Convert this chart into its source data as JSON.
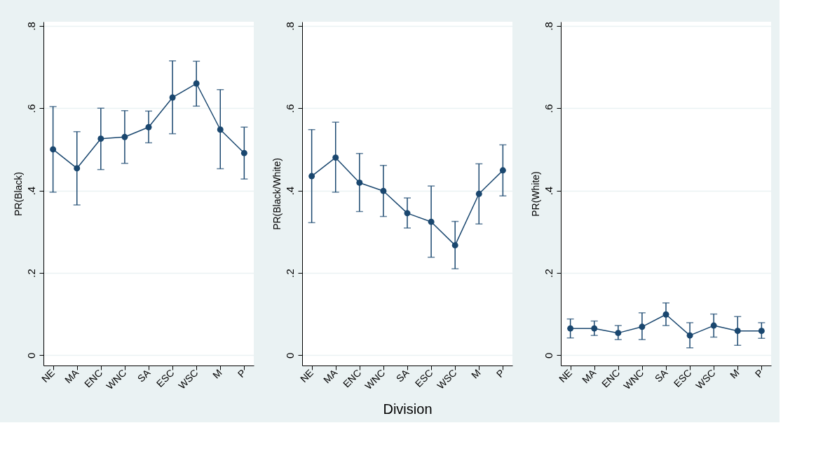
{
  "chart_data": [
    {
      "type": "line",
      "ylabel": "PR(Black)",
      "categories": [
        "NE",
        "MA",
        "ENC",
        "WNC",
        "SA",
        "ESC",
        "WSC",
        "M",
        "P"
      ],
      "series": [
        {
          "color": "#1a476f",
          "values": [
            0.5,
            0.454,
            0.526,
            0.53,
            0.554,
            0.626,
            0.66,
            0.548,
            0.491
          ],
          "errors": [
            [
              0.396,
              0.604
            ],
            [
              0.365,
              0.543
            ],
            [
              0.451,
              0.6
            ],
            [
              0.466,
              0.594
            ],
            [
              0.516,
              0.593
            ],
            [
              0.538,
              0.715
            ],
            [
              0.605,
              0.714
            ],
            [
              0.453,
              0.645
            ],
            [
              0.428,
              0.554
            ]
          ]
        }
      ],
      "ylim": [
        -0.025,
        0.81
      ],
      "yticks": [
        0,
        {
          "value": 0.2,
          "label": ".2"
        },
        {
          "value": 0.4,
          "label": ".4"
        },
        {
          "value": 0.6,
          "label": ".6"
        },
        {
          "value": 0.8,
          "label": ".8"
        }
      ],
      "grid": "y",
      "marker": "circle",
      "line_style": "solid"
    },
    {
      "type": "line",
      "ylabel": "PR(Black/White)",
      "xlabel": "Division",
      "categories": [
        "NE",
        "MA",
        "ENC",
        "WNC",
        "SA",
        "ESC",
        "WSC",
        "M",
        "P"
      ],
      "series": [
        {
          "color": "#1a476f",
          "values": [
            0.435,
            0.48,
            0.419,
            0.399,
            0.345,
            0.324,
            0.267,
            0.392,
            0.449
          ],
          "errors": [
            [
              0.322,
              0.548
            ],
            [
              0.396,
              0.566
            ],
            [
              0.349,
              0.49
            ],
            [
              0.337,
              0.461
            ],
            [
              0.309,
              0.382
            ],
            [
              0.238,
              0.411
            ],
            [
              0.21,
              0.325
            ],
            [
              0.319,
              0.465
            ],
            [
              0.387,
              0.511
            ]
          ]
        }
      ],
      "ylim": [
        -0.025,
        0.81
      ],
      "yticks": [
        0,
        {
          "value": 0.2,
          "label": ".2"
        },
        {
          "value": 0.4,
          "label": ".4"
        },
        {
          "value": 0.6,
          "label": ".6"
        },
        {
          "value": 0.8,
          "label": ".8"
        }
      ],
      "grid": "y",
      "marker": "circle",
      "line_style": "solid"
    },
    {
      "type": "line",
      "ylabel": "PR(White)",
      "categories": [
        "NE",
        "MA",
        "ENC",
        "WNC",
        "SA",
        "ESC",
        "WSC",
        "M",
        "P"
      ],
      "series": [
        {
          "color": "#1a476f",
          "values": [
            0.065,
            0.065,
            0.054,
            0.069,
            0.099,
            0.048,
            0.072,
            0.059,
            0.059
          ],
          "errors": [
            [
              0.042,
              0.088
            ],
            [
              0.048,
              0.083
            ],
            [
              0.038,
              0.072
            ],
            [
              0.038,
              0.103
            ],
            [
              0.072,
              0.127
            ],
            [
              0.018,
              0.079
            ],
            [
              0.044,
              0.1
            ],
            [
              0.024,
              0.094
            ],
            [
              0.041,
              0.079
            ]
          ]
        }
      ],
      "ylim": [
        -0.025,
        0.81
      ],
      "yticks": [
        0,
        {
          "value": 0.2,
          "label": ".2"
        },
        {
          "value": 0.4,
          "label": ".4"
        },
        {
          "value": 0.6,
          "label": ".6"
        },
        {
          "value": 0.8,
          "label": ".8"
        }
      ],
      "grid": "y",
      "marker": "circle",
      "line_style": "solid"
    }
  ]
}
